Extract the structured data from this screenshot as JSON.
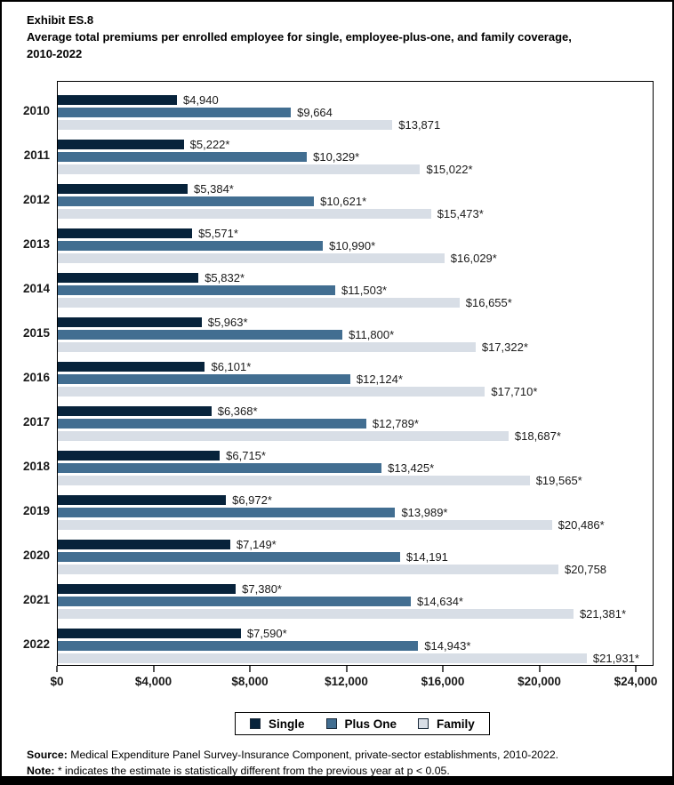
{
  "header": {
    "exhibit": "Exhibit ES.8",
    "title": "Average total premiums per enrolled employee for single, employee-plus-one, and family coverage, 2010-2022"
  },
  "chart_data": {
    "type": "bar",
    "orientation": "horizontal",
    "title": "Average total premiums per enrolled employee for single, employee-plus-one, and family coverage, 2010-2022",
    "categories": [
      "2010",
      "2011",
      "2012",
      "2013",
      "2014",
      "2015",
      "2016",
      "2017",
      "2018",
      "2019",
      "2020",
      "2021",
      "2022"
    ],
    "series": [
      {
        "name": "Single",
        "color": "#07233b",
        "values": [
          4940,
          5222,
          5384,
          5571,
          5832,
          5963,
          6101,
          6368,
          6715,
          6972,
          7149,
          7380,
          7590
        ],
        "labels": [
          "$4,940",
          "$5,222*",
          "$5,384*",
          "$5,571*",
          "$5,832*",
          "$5,963*",
          "$6,101*",
          "$6,368*",
          "$6,715*",
          "$6,972*",
          "$7,149*",
          "$7,380*",
          "$7,590*"
        ]
      },
      {
        "name": "Plus One",
        "color": "#426e91",
        "values": [
          9664,
          10329,
          10621,
          10990,
          11503,
          11800,
          12124,
          12789,
          13425,
          13989,
          14191,
          14634,
          14943
        ],
        "labels": [
          "$9,664",
          "$10,329*",
          "$10,621*",
          "$10,990*",
          "$11,503*",
          "$11,800*",
          "$12,124*",
          "$12,789*",
          "$13,425*",
          "$13,989*",
          "$14,191",
          "$14,634*",
          "$14,943*"
        ]
      },
      {
        "name": "Family",
        "color": "#d8dee6",
        "values": [
          13871,
          15022,
          15473,
          16029,
          16655,
          17322,
          17710,
          18687,
          19565,
          20486,
          20758,
          21381,
          21931
        ],
        "labels": [
          "$13,871",
          "$15,022*",
          "$15,473*",
          "$16,029*",
          "$16,655*",
          "$17,322*",
          "$17,710*",
          "$18,687*",
          "$19,565*",
          "$20,486*",
          "$20,758",
          "$21,381*",
          "$21,931*"
        ]
      }
    ],
    "xlim": [
      0,
      24000
    ],
    "x_tick_values": [
      0,
      4000,
      8000,
      12000,
      16000,
      20000,
      24000
    ],
    "x_tick_labels": [
      "$0",
      "$4,000",
      "$8,000",
      "$12,000",
      "$16,000",
      "$20,000",
      "$24,000"
    ],
    "grid": false,
    "legend_position": "bottom"
  },
  "footer": {
    "source_label": "Source:",
    "source_text": " Medical Expenditure Panel Survey-Insurance Component, private-sector establishments, 2010-2022.",
    "note_label": "Note:",
    "note_text": " * indicates the estimate is statistically different from the previous year at p < 0.05."
  }
}
